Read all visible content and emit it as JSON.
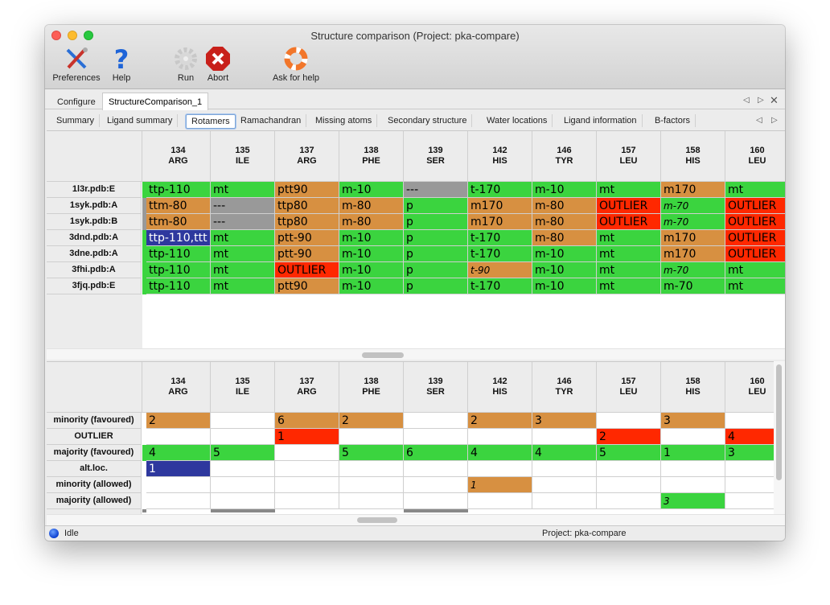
{
  "window": {
    "title": "Structure comparison (Project: pka-compare)"
  },
  "toolbar": {
    "preferences": "Preferences",
    "help": "Help",
    "run": "Run",
    "abort": "Abort",
    "ask_for_help": "Ask for help"
  },
  "main_tabs": [
    {
      "label": "Configure"
    },
    {
      "label": "StructureComparison_1",
      "selected": true
    }
  ],
  "sub_tabs": [
    {
      "label": "Summary"
    },
    {
      "label": "Ligand summary"
    },
    {
      "label": "Rotamers",
      "selected": true
    },
    {
      "label": "Ramachandran"
    },
    {
      "label": "Missing atoms"
    },
    {
      "label": "Secondary structure"
    },
    {
      "label": "Water locations"
    },
    {
      "label": "Ligand information"
    },
    {
      "label": "B-factors"
    }
  ],
  "colors": {
    "green": "#3bd43f",
    "orange": "#d79041",
    "red": "#ff2800",
    "gray": "#999999",
    "blue": "#2e389e"
  },
  "columns": [
    {
      "num": "134",
      "res": "ARG"
    },
    {
      "num": "135",
      "res": "ILE"
    },
    {
      "num": "137",
      "res": "ARG"
    },
    {
      "num": "138",
      "res": "PHE"
    },
    {
      "num": "139",
      "res": "SER"
    },
    {
      "num": "142",
      "res": "HIS"
    },
    {
      "num": "146",
      "res": "TYR"
    },
    {
      "num": "157",
      "res": "LEU"
    },
    {
      "num": "158",
      "res": "HIS"
    },
    {
      "num": "160",
      "res": "LEU"
    }
  ],
  "rotamer_table": {
    "rows": [
      {
        "label": "1l3r.pdb:E",
        "strip": "g",
        "cells": [
          [
            "ttp-110",
            "g"
          ],
          [
            "mt",
            "g"
          ],
          [
            "ptt90",
            "o"
          ],
          [
            "m-10",
            "g"
          ],
          [
            "---",
            "x"
          ],
          [
            "t-170",
            "g"
          ],
          [
            "m-10",
            "g"
          ],
          [
            "mt",
            "g"
          ],
          [
            "m170",
            "o"
          ],
          [
            "mt",
            "g"
          ]
        ]
      },
      {
        "label": "1syk.pdb:A",
        "strip": "x",
        "cells": [
          [
            "ttm-80",
            "o"
          ],
          [
            "---",
            "x"
          ],
          [
            "ttp80",
            "o"
          ],
          [
            "m-80",
            "o"
          ],
          [
            "p",
            "g"
          ],
          [
            "m170",
            "o"
          ],
          [
            "m-80",
            "o"
          ],
          [
            "OUTLIER",
            "r"
          ],
          [
            "m-70",
            "g",
            1
          ],
          [
            "OUTLIER",
            "r"
          ]
        ]
      },
      {
        "label": "1syk.pdb:B",
        "strip": "x",
        "cells": [
          [
            "ttm-80",
            "o"
          ],
          [
            "---",
            "x"
          ],
          [
            "ttp80",
            "o"
          ],
          [
            "m-80",
            "o"
          ],
          [
            "p",
            "g"
          ],
          [
            "m170",
            "o"
          ],
          [
            "m-80",
            "o"
          ],
          [
            "OUTLIER",
            "r"
          ],
          [
            "m-70",
            "g",
            1
          ],
          [
            "OUTLIER",
            "r"
          ]
        ]
      },
      {
        "label": "3dnd.pdb:A",
        "strip": "g",
        "cells": [
          [
            "ttp-110,ttt",
            "b"
          ],
          [
            "mt",
            "g"
          ],
          [
            "ptt-90",
            "o"
          ],
          [
            "m-10",
            "g"
          ],
          [
            "p",
            "g"
          ],
          [
            "t-170",
            "g"
          ],
          [
            "m-80",
            "o"
          ],
          [
            "mt",
            "g"
          ],
          [
            "m170",
            "o"
          ],
          [
            "OUTLIER",
            "r"
          ]
        ]
      },
      {
        "label": "3dne.pdb:A",
        "strip": "g",
        "cells": [
          [
            "ttp-110",
            "g"
          ],
          [
            "mt",
            "g"
          ],
          [
            "ptt-90",
            "o"
          ],
          [
            "m-10",
            "g"
          ],
          [
            "p",
            "g"
          ],
          [
            "t-170",
            "g"
          ],
          [
            "m-10",
            "g"
          ],
          [
            "mt",
            "g"
          ],
          [
            "m170",
            "o"
          ],
          [
            "OUTLIER",
            "r"
          ]
        ]
      },
      {
        "label": "3fhi.pdb:A",
        "strip": "g",
        "cells": [
          [
            "ttp-110",
            "g"
          ],
          [
            "mt",
            "g"
          ],
          [
            "OUTLIER",
            "r"
          ],
          [
            "m-10",
            "g"
          ],
          [
            "p",
            "g"
          ],
          [
            "t-90",
            "o",
            1
          ],
          [
            "m-10",
            "g"
          ],
          [
            "mt",
            "g"
          ],
          [
            "m-70",
            "g",
            1
          ],
          [
            "mt",
            "g"
          ]
        ]
      },
      {
        "label": "3fjq.pdb:E",
        "strip": "g",
        "cells": [
          [
            "ttp-110",
            "g"
          ],
          [
            "mt",
            "g"
          ],
          [
            "ptt90",
            "o"
          ],
          [
            "m-10",
            "g"
          ],
          [
            "p",
            "g"
          ],
          [
            "t-170",
            "g"
          ],
          [
            "m-10",
            "g"
          ],
          [
            "mt",
            "g"
          ],
          [
            "m-70",
            "g"
          ],
          [
            "mt",
            "g"
          ]
        ]
      }
    ]
  },
  "summary_table": {
    "rows": [
      {
        "label": "minority (favoured)",
        "cells": [
          [
            "2",
            "o"
          ],
          [
            "",
            "w"
          ],
          [
            "6",
            "o"
          ],
          [
            "2",
            "o"
          ],
          [
            "",
            "w"
          ],
          [
            "2",
            "o"
          ],
          [
            "3",
            "o"
          ],
          [
            "",
            "w"
          ],
          [
            "3",
            "o"
          ],
          [
            "",
            "w"
          ]
        ]
      },
      {
        "label": "OUTLIER",
        "cells": [
          [
            "",
            "w"
          ],
          [
            "",
            "w"
          ],
          [
            "1",
            "r"
          ],
          [
            "",
            "w"
          ],
          [
            "",
            "w"
          ],
          [
            "",
            "w"
          ],
          [
            "",
            "w"
          ],
          [
            "2",
            "r"
          ],
          [
            "",
            "w"
          ],
          [
            "4",
            "r"
          ]
        ]
      },
      {
        "label": "majority (favoured)",
        "strip": "g",
        "cells": [
          [
            "4",
            "g"
          ],
          [
            "5",
            "g"
          ],
          [
            "",
            "w"
          ],
          [
            "5",
            "g"
          ],
          [
            "6",
            "g"
          ],
          [
            "4",
            "g"
          ],
          [
            "4",
            "g"
          ],
          [
            "5",
            "g"
          ],
          [
            "1",
            "g"
          ],
          [
            "3",
            "g"
          ]
        ]
      },
      {
        "label": "alt.loc.",
        "cells": [
          [
            "1",
            "b"
          ],
          [
            "",
            "w"
          ],
          [
            "",
            "w"
          ],
          [
            "",
            "w"
          ],
          [
            "",
            "w"
          ],
          [
            "",
            "w"
          ],
          [
            "",
            "w"
          ],
          [
            "",
            "w"
          ],
          [
            "",
            "w"
          ],
          [
            "",
            "w"
          ]
        ]
      },
      {
        "label": "minority (allowed)",
        "cells": [
          [
            "",
            "w"
          ],
          [
            "",
            "w"
          ],
          [
            "",
            "w"
          ],
          [
            "",
            "w"
          ],
          [
            "",
            "w"
          ],
          [
            "1",
            "o",
            1
          ],
          [
            "",
            "w"
          ],
          [
            "",
            "w"
          ],
          [
            "",
            "w"
          ],
          [
            "",
            "w"
          ]
        ]
      },
      {
        "label": "majority (allowed)",
        "cells": [
          [
            "",
            "w"
          ],
          [
            "",
            "w"
          ],
          [
            "",
            "w"
          ],
          [
            "",
            "w"
          ],
          [
            "",
            "w"
          ],
          [
            "",
            "w"
          ],
          [
            "",
            "w"
          ],
          [
            "",
            "w"
          ],
          [
            "3",
            "g",
            1
          ],
          [
            "",
            "w"
          ]
        ]
      }
    ]
  },
  "status": {
    "state": "Idle",
    "project": "Project: pka-compare"
  }
}
